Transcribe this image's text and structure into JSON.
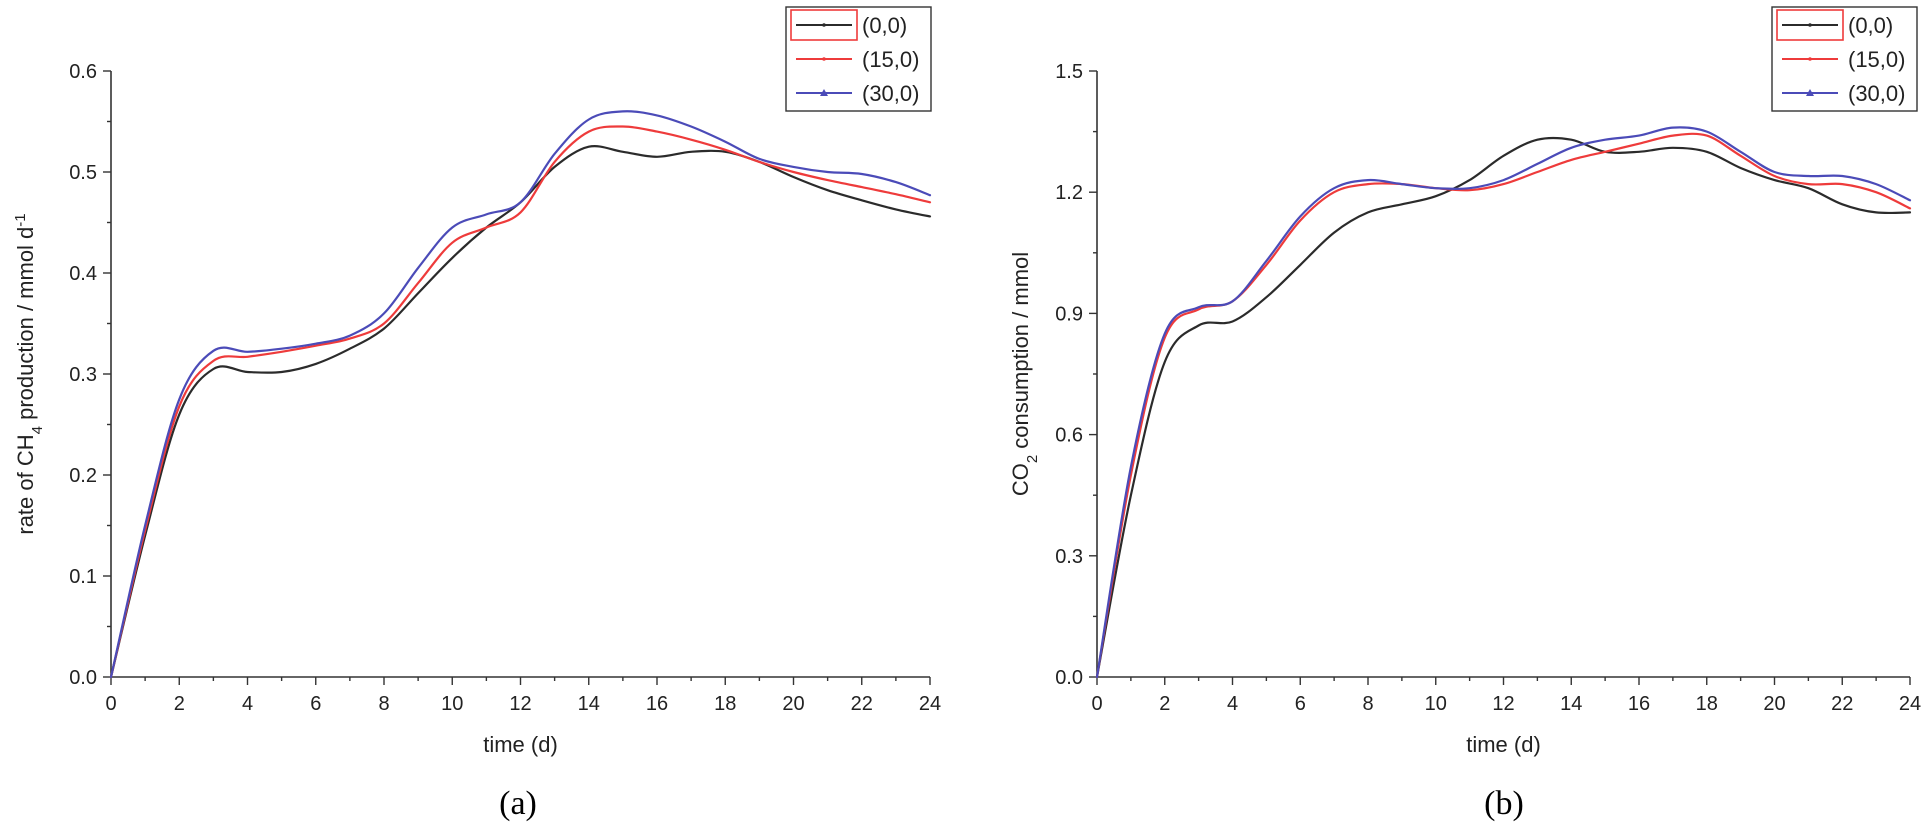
{
  "chart_data": [
    {
      "type": "line",
      "panel_label": "(a)",
      "xlabel": "time (d)",
      "ylabel": {
        "pre": "rate of CH",
        "sub": "4",
        "mid": " production / mmol d",
        "sup": "-1"
      },
      "xlim": [
        0,
        24
      ],
      "ylim": [
        0,
        0.6
      ],
      "xticks": [
        "0",
        "2",
        "4",
        "6",
        "8",
        "10",
        "12",
        "14",
        "16",
        "18",
        "20",
        "22",
        "24"
      ],
      "yticks": [
        "0.0",
        "0.1",
        "0.2",
        "0.3",
        "0.4",
        "0.5",
        "0.6"
      ],
      "legend_position": "top-right",
      "series": [
        {
          "name": "(0,0)",
          "color": "#2b2b2b",
          "marker": "dot",
          "x": [
            0,
            1,
            2,
            3,
            4,
            5,
            6,
            7,
            8,
            9,
            10,
            11,
            12,
            13,
            14,
            15,
            16,
            17,
            18,
            19,
            20,
            21,
            22,
            23,
            24
          ],
          "values": [
            0.0,
            0.14,
            0.26,
            0.305,
            0.302,
            0.302,
            0.31,
            0.325,
            0.345,
            0.38,
            0.415,
            0.445,
            0.47,
            0.505,
            0.525,
            0.52,
            0.515,
            0.52,
            0.52,
            0.51,
            0.495,
            0.482,
            0.472,
            0.463,
            0.456
          ]
        },
        {
          "name": "(15,0)",
          "color": "#ee3b3b",
          "marker": "dot",
          "x": [
            0,
            1,
            2,
            3,
            4,
            5,
            6,
            7,
            8,
            9,
            10,
            11,
            12,
            13,
            14,
            15,
            16,
            17,
            18,
            19,
            20,
            21,
            22,
            23,
            24
          ],
          "values": [
            0.0,
            0.145,
            0.268,
            0.313,
            0.317,
            0.322,
            0.328,
            0.335,
            0.35,
            0.39,
            0.43,
            0.445,
            0.46,
            0.51,
            0.54,
            0.545,
            0.54,
            0.532,
            0.522,
            0.51,
            0.5,
            0.492,
            0.485,
            0.478,
            0.47
          ]
        },
        {
          "name": "(30,0)",
          "color": "#4b4bb8",
          "marker": "triangle",
          "x": [
            0,
            1,
            2,
            3,
            4,
            5,
            6,
            7,
            8,
            9,
            10,
            11,
            12,
            13,
            14,
            15,
            16,
            17,
            18,
            19,
            20,
            21,
            22,
            23,
            24
          ],
          "values": [
            0.0,
            0.15,
            0.275,
            0.323,
            0.322,
            0.325,
            0.33,
            0.338,
            0.36,
            0.405,
            0.445,
            0.458,
            0.47,
            0.518,
            0.552,
            0.56,
            0.556,
            0.545,
            0.53,
            0.513,
            0.505,
            0.5,
            0.498,
            0.49,
            0.477
          ]
        }
      ]
    },
    {
      "type": "line",
      "panel_label": "(b)",
      "xlabel": "time (d)",
      "ylabel": {
        "pre": "CO",
        "sub": "2",
        "mid": " consumption / mmol",
        "sup": ""
      },
      "xlim": [
        0,
        24
      ],
      "ylim": [
        0,
        1.5
      ],
      "xticks": [
        "0",
        "2",
        "4",
        "6",
        "8",
        "10",
        "12",
        "14",
        "16",
        "18",
        "20",
        "22",
        "24"
      ],
      "yticks": [
        "0.0",
        "0.3",
        "0.6",
        "0.9",
        "1.2",
        "1.5"
      ],
      "legend_position": "top-right",
      "series": [
        {
          "name": "(0,0)",
          "color": "#2b2b2b",
          "marker": "dot",
          "x": [
            0,
            1,
            2,
            3,
            4,
            5,
            6,
            7,
            8,
            9,
            10,
            11,
            12,
            13,
            14,
            15,
            16,
            17,
            18,
            19,
            20,
            21,
            22,
            23,
            24
          ],
          "values": [
            0.0,
            0.45,
            0.78,
            0.87,
            0.88,
            0.94,
            1.02,
            1.1,
            1.15,
            1.17,
            1.19,
            1.23,
            1.29,
            1.33,
            1.33,
            1.3,
            1.3,
            1.31,
            1.3,
            1.26,
            1.23,
            1.21,
            1.17,
            1.15,
            1.15
          ]
        },
        {
          "name": "(15,0)",
          "color": "#ee3b3b",
          "marker": "dot",
          "x": [
            0,
            1,
            2,
            3,
            4,
            5,
            6,
            7,
            8,
            9,
            10,
            11,
            12,
            13,
            14,
            15,
            16,
            17,
            18,
            19,
            20,
            21,
            22,
            23,
            24
          ],
          "values": [
            0.0,
            0.5,
            0.84,
            0.91,
            0.93,
            1.02,
            1.13,
            1.2,
            1.22,
            1.22,
            1.21,
            1.205,
            1.22,
            1.25,
            1.28,
            1.3,
            1.32,
            1.34,
            1.34,
            1.29,
            1.24,
            1.22,
            1.22,
            1.2,
            1.16
          ]
        },
        {
          "name": "(30,0)",
          "color": "#4b4bb8",
          "marker": "triangle",
          "x": [
            0,
            1,
            2,
            3,
            4,
            5,
            6,
            7,
            8,
            9,
            10,
            11,
            12,
            13,
            14,
            15,
            16,
            17,
            18,
            19,
            20,
            21,
            22,
            23,
            24
          ],
          "values": [
            0.0,
            0.52,
            0.85,
            0.915,
            0.93,
            1.03,
            1.14,
            1.21,
            1.23,
            1.22,
            1.21,
            1.21,
            1.23,
            1.27,
            1.31,
            1.33,
            1.34,
            1.36,
            1.35,
            1.3,
            1.25,
            1.24,
            1.24,
            1.22,
            1.18
          ]
        }
      ]
    }
  ]
}
